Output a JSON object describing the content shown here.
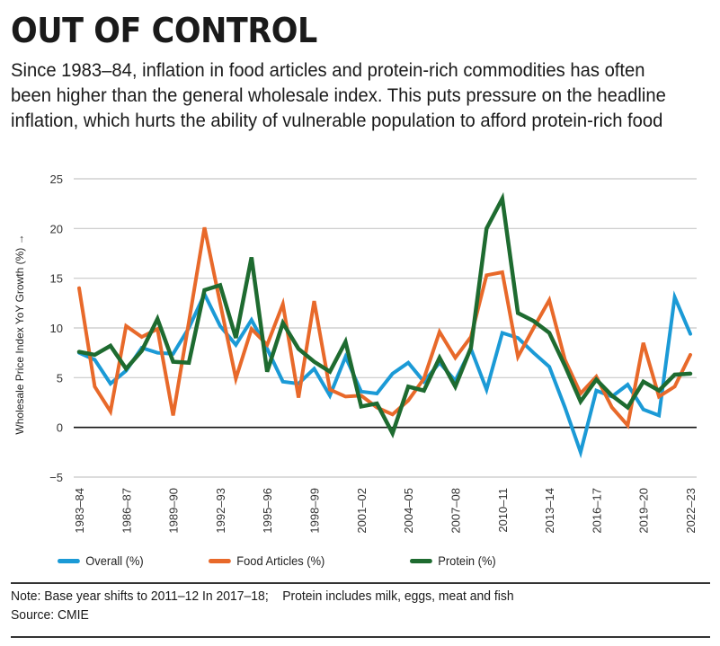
{
  "header": {
    "title": "OUT OF CONTROL",
    "subtitle": "Since 1983–84, inflation in food articles and protein-rich commodities has often been higher than the general wholesale index. This puts pressure on the headline inflation, which hurts the ability of vulnerable population to afford protein-rich food"
  },
  "footer": {
    "note": "Note: Base year shifts to 2011–12 In 2017–18;    Protein includes milk, eggs, meat and fish",
    "source": "Source: CMIE"
  },
  "chart_data": {
    "type": "line",
    "title": "",
    "xlabel": "",
    "ylabel": "Wholesale Price Index YoY Growth (%) →",
    "ylim": [
      -5,
      25
    ],
    "yticks": [
      -5,
      0,
      5,
      10,
      15,
      20,
      25
    ],
    "grid": true,
    "legend_position": "bottom",
    "x": [
      "1983–84",
      "1984–85",
      "1985–86",
      "1986–87",
      "1987–88",
      "1988–89",
      "1989–90",
      "1990–91",
      "1991–92",
      "1992–93",
      "1993–94",
      "1994–95",
      "1995–96",
      "1996–97",
      "1997–98",
      "1998–99",
      "1999–00",
      "2000–01",
      "2001–02",
      "2002–03",
      "2003–04",
      "2004–05",
      "2005–06",
      "2006–07",
      "2007–08",
      "2008–09",
      "2009–10",
      "2010–11",
      "2011–12",
      "2012–13",
      "2013–14",
      "2014–15",
      "2015–16",
      "2016–17",
      "2017–18",
      "2018–19",
      "2019–20",
      "2020–21",
      "2021–22",
      "2022–23"
    ],
    "xtick_labels": [
      "1983–84",
      "1986–87",
      "1989–90",
      "1992–93",
      "1995–96",
      "1998–99",
      "2001–02",
      "2004–05",
      "2007–08",
      "2010–11",
      "2013–14",
      "2016–17",
      "2019–20",
      "2022–23"
    ],
    "series": [
      {
        "name": "Overall (%)",
        "color": "#1b9ad6",
        "values": [
          7.5,
          6.8,
          4.4,
          5.7,
          8.0,
          7.5,
          7.4,
          10.0,
          13.4,
          10.2,
          8.3,
          10.8,
          7.9,
          4.6,
          4.4,
          5.9,
          3.2,
          7.1,
          3.6,
          3.4,
          5.4,
          6.5,
          4.6,
          6.5,
          4.7,
          7.9,
          3.8,
          9.5,
          9.0,
          7.5,
          6.1,
          2.0,
          -2.5,
          3.7,
          3.1,
          4.3,
          1.8,
          1.2,
          13.1,
          9.4
        ]
      },
      {
        "name": "Food Articles (%)",
        "color": "#e8692a",
        "values": [
          14.0,
          4.1,
          1.6,
          10.2,
          9.1,
          9.9,
          1.2,
          10.6,
          20.1,
          12.5,
          4.9,
          9.9,
          8.3,
          12.4,
          3.0,
          12.7,
          3.8,
          3.1,
          3.2,
          2.0,
          1.3,
          2.7,
          4.9,
          9.6,
          7.0,
          9.1,
          15.3,
          15.6,
          7.1,
          10.0,
          12.8,
          6.8,
          3.4,
          5.1,
          2.0,
          0.2,
          8.5,
          3.1,
          4.1,
          7.3
        ]
      },
      {
        "name": "Protein (%)",
        "color": "#1e6b30",
        "values": [
          7.6,
          7.3,
          8.2,
          5.9,
          7.7,
          10.9,
          6.6,
          6.5,
          13.8,
          14.3,
          9.0,
          17.1,
          5.6,
          10.5,
          7.9,
          6.6,
          5.6,
          8.6,
          2.1,
          2.4,
          -0.6,
          4.1,
          3.7,
          7.0,
          4.1,
          8.0,
          20.0,
          23.0,
          11.5,
          10.7,
          9.5,
          6.2,
          2.6,
          4.8,
          3.2,
          2.0,
          4.6,
          3.7,
          5.3,
          5.4
        ]
      }
    ]
  }
}
